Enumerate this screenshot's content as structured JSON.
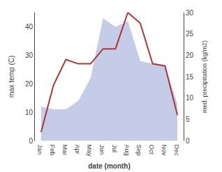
{
  "chart_data": {
    "type": "line",
    "categories": [
      "Jan",
      "Feb",
      "Mar",
      "Apr",
      "May",
      "Jun",
      "Jul",
      "Aug",
      "Sep",
      "Oct",
      "Nov",
      "Dec"
    ],
    "series": [
      {
        "type": "area",
        "color": "#c5cce8",
        "values": [
          12,
          11,
          11,
          14,
          22,
          43,
          40,
          42,
          28,
          27,
          26,
          13
        ]
      },
      {
        "type": "line",
        "color": "#b03535",
        "axis": "y2",
        "values": [
          2.0,
          13.0,
          19.0,
          18.0,
          18.0,
          21.5,
          21.5,
          30.0,
          27.5,
          18.0,
          17.5,
          6.0
        ]
      }
    ],
    "xlabel": "date (month)",
    "ylabel": "max temp (C)",
    "y2label": "med. precipitation (kg/m2)",
    "ylim": [
      0,
      45
    ],
    "yticks": [
      0,
      10,
      20,
      30,
      40
    ],
    "y2lim": [
      0,
      30
    ],
    "y2ticks": [
      0,
      5,
      10,
      15,
      20,
      25,
      30
    ],
    "grid": false
  }
}
